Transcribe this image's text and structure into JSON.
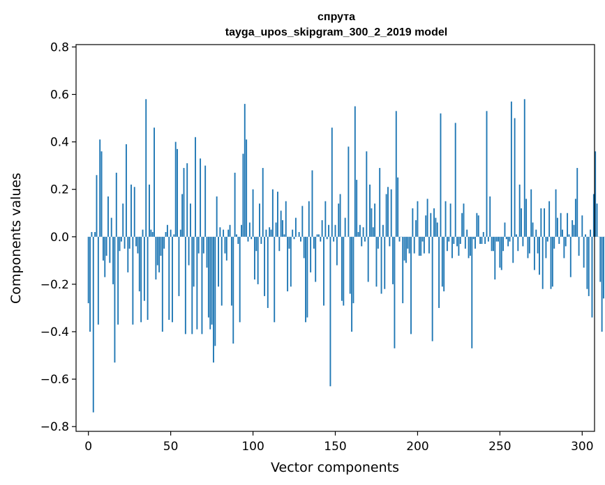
{
  "chart_data": {
    "type": "bar",
    "title": "спрута",
    "subtitle": "tayga_upos_skipgram_300_2_2019 model",
    "xlabel": "Vector components",
    "ylabel": "Components values",
    "xlim": [
      -7.5,
      307.5
    ],
    "ylim": [
      -0.82,
      0.81
    ],
    "xticks": [
      0,
      50,
      100,
      150,
      200,
      250,
      300
    ],
    "xtick_labels": [
      "0",
      "50",
      "100",
      "150",
      "200",
      "250",
      "300"
    ],
    "yticks": [
      -0.8,
      -0.6,
      -0.4,
      -0.2,
      0.0,
      0.2,
      0.4,
      0.6,
      0.8
    ],
    "ytick_labels": [
      "−0.8",
      "−0.6",
      "−0.4",
      "−0.2",
      "0.0",
      "0.2",
      "0.4",
      "0.6",
      "0.8"
    ],
    "color": "#1f77b4",
    "values": [
      -0.28,
      -0.4,
      0.02,
      -0.74,
      0.02,
      0.26,
      -0.37,
      0.41,
      0.36,
      -0.1,
      -0.17,
      -0.08,
      0.17,
      -0.11,
      0.08,
      -0.2,
      -0.53,
      0.27,
      -0.37,
      -0.06,
      -0.02,
      0.14,
      -0.05,
      0.39,
      -0.15,
      -0.05,
      0.22,
      -0.37,
      0.21,
      -0.04,
      -0.07,
      -0.23,
      -0.36,
      0.03,
      -0.27,
      0.58,
      -0.35,
      0.22,
      0.03,
      0.02,
      0.46,
      -0.18,
      -0.12,
      -0.15,
      -0.08,
      -0.4,
      -0.05,
      0.02,
      0.05,
      -0.35,
      0.03,
      -0.36,
      0.01,
      0.4,
      0.37,
      -0.25,
      0.03,
      0.18,
      0.29,
      -0.41,
      0.31,
      -0.12,
      0.14,
      -0.41,
      -0.21,
      0.42,
      -0.39,
      -0.07,
      0.33,
      -0.41,
      -0.07,
      0.3,
      -0.13,
      -0.34,
      -0.39,
      -0.37,
      -0.53,
      -0.46,
      0.17,
      -0.21,
      0.04,
      -0.29,
      0.03,
      -0.07,
      -0.1,
      0.03,
      0.05,
      -0.29,
      -0.45,
      0.27,
      0.01,
      -0.03,
      -0.36,
      0.05,
      0.35,
      0.56,
      0.41,
      -0.02,
      0.06,
      -0.01,
      0.2,
      -0.18,
      -0.06,
      -0.2,
      0.14,
      -0.03,
      0.29,
      -0.25,
      0.03,
      -0.3,
      0.04,
      0.03,
      0.2,
      -0.36,
      0.06,
      0.19,
      -0.06,
      0.11,
      0.07,
      0.01,
      0.15,
      -0.23,
      -0.05,
      -0.21,
      0.03,
      -0.01,
      0.08,
      0.0,
      0.02,
      -0.02,
      0.13,
      -0.09,
      -0.36,
      -0.34,
      0.15,
      -0.15,
      0.28,
      -0.05,
      -0.19,
      0.01,
      0.01,
      -0.02,
      0.07,
      -0.29,
      0.15,
      -0.01,
      0.05,
      -0.63,
      0.46,
      -0.02,
      0.05,
      -0.12,
      0.14,
      0.18,
      -0.27,
      -0.29,
      0.08,
      0.0,
      0.38,
      -0.24,
      -0.4,
      -0.28,
      0.55,
      0.24,
      0.02,
      0.05,
      -0.04,
      0.04,
      -0.02,
      0.36,
      -0.19,
      0.22,
      0.12,
      0.04,
      0.14,
      -0.21,
      -0.05,
      0.29,
      -0.24,
      0.05,
      -0.22,
      0.18,
      0.21,
      -0.04,
      0.2,
      -0.2,
      -0.47,
      0.53,
      0.25,
      -0.02,
      0.0,
      -0.28,
      -0.1,
      -0.11,
      -0.05,
      -0.07,
      -0.41,
      0.12,
      -0.07,
      0.07,
      0.15,
      -0.08,
      -0.08,
      -0.02,
      -0.07,
      0.09,
      0.16,
      -0.07,
      0.1,
      -0.44,
      0.12,
      0.08,
      0.06,
      -0.3,
      0.52,
      -0.21,
      -0.23,
      0.15,
      -0.06,
      -0.02,
      0.14,
      -0.09,
      -0.03,
      0.48,
      -0.04,
      -0.08,
      -0.03,
      0.1,
      0.14,
      -0.05,
      0.03,
      -0.09,
      -0.08,
      -0.47,
      -0.01,
      -0.05,
      0.1,
      0.09,
      -0.03,
      -0.03,
      0.02,
      -0.03,
      0.53,
      -0.02,
      0.17,
      -0.06,
      -0.06,
      -0.18,
      -0.02,
      -0.02,
      -0.13,
      -0.14,
      -0.06,
      0.06,
      -0.01,
      -0.04,
      -0.02,
      0.57,
      -0.11,
      0.5,
      0.01,
      -0.06,
      0.22,
      0.12,
      -0.04,
      0.58,
      0.16,
      -0.09,
      -0.07,
      0.2,
      0.06,
      -0.14,
      0.03,
      -0.07,
      -0.16,
      0.12,
      -0.22,
      0.12,
      -0.09,
      -0.02,
      0.15,
      -0.22,
      -0.21,
      -0.05,
      0.2,
      0.08,
      -0.03,
      0.1,
      0.03,
      -0.09,
      -0.04,
      0.1,
      0.01,
      -0.17,
      0.07,
      0.05,
      0.16,
      0.29,
      -0.08,
      0.0,
      0.09,
      -0.13,
      0.01,
      -0.22,
      -0.25,
      0.03,
      -0.34,
      0.18,
      0.36,
      0.14,
      0.0,
      -0.19,
      -0.4,
      -0.26,
      0.0,
      0.0
    ],
    "annotations": []
  }
}
